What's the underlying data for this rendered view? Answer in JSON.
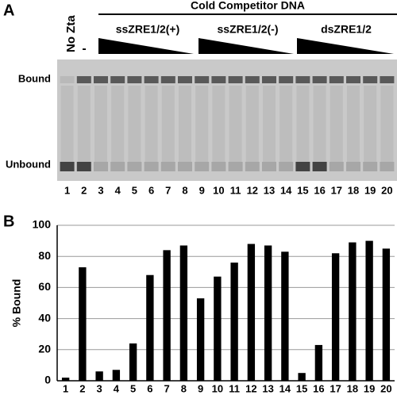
{
  "panel_a": {
    "label": "A",
    "no_zta": "No Zta",
    "minus": "-",
    "competitor": "Cold Competitor DNA",
    "groups": [
      "ssZRE1/2(+)",
      "ssZRE1/2(-)",
      "dsZRE1/2"
    ],
    "bound": "Bound",
    "unbound": "Unbound",
    "lanes": [
      "1",
      "2",
      "3",
      "4",
      "5",
      "6",
      "7",
      "8",
      "9",
      "10",
      "11",
      "12",
      "13",
      "14",
      "15",
      "16",
      "17",
      "18",
      "19",
      "20"
    ]
  },
  "chart_data": {
    "type": "bar",
    "panel_label": "B",
    "ylabel": "% Bound",
    "categories": [
      "1",
      "2",
      "3",
      "4",
      "5",
      "6",
      "7",
      "8",
      "9",
      "10",
      "11",
      "12",
      "13",
      "14",
      "15",
      "16",
      "17",
      "18",
      "19",
      "20"
    ],
    "values": [
      2,
      73,
      6,
      7,
      24,
      68,
      84,
      87,
      53,
      67,
      76,
      88,
      87,
      83,
      5,
      23,
      82,
      89,
      90,
      85
    ],
    "color": "#000000",
    "ylim": [
      0,
      100
    ],
    "yticks": [
      0,
      20,
      40,
      60,
      80,
      100
    ],
    "grid": true
  }
}
